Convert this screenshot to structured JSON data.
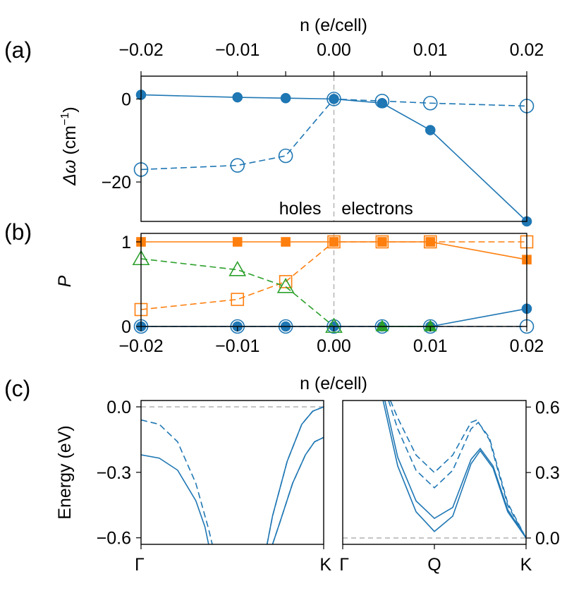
{
  "chart_data": [
    {
      "type": "line",
      "panel_label": "(a)",
      "xlabel": "n (e/cell)",
      "ylabel_main": "Δω",
      "ylabel_unit_pre": " (cm",
      "ylabel_sup": "−1",
      "ylabel_unit_post": ")",
      "xlim": [
        -0.02,
        0.02
      ],
      "ylim": [
        -29.5,
        5.5
      ],
      "xticks": [
        -0.02,
        -0.01,
        -0.005,
        0.0,
        0.005,
        0.01,
        0.02
      ],
      "xtick_labels": [
        "−0.02",
        "−0.01",
        "0.00",
        "0.01",
        "0.02"
      ],
      "xtick_label_values": [
        -0.02,
        -0.01,
        0.0,
        0.01,
        0.02
      ],
      "yticks": [
        0,
        -20
      ],
      "ytick_labels": [
        "0",
        "−20"
      ],
      "annotations": [
        {
          "text": "holes",
          "x": -0.0035,
          "y": -27
        },
        {
          "text": "electrons",
          "x": 0.0045,
          "y": -27
        }
      ],
      "series": [
        {
          "name": "filled",
          "color": "#1f77b4",
          "marker": "circle",
          "filled": true,
          "linestyle": "solid",
          "x": [
            -0.02,
            -0.01,
            -0.005,
            0.0,
            0.005,
            0.01,
            0.02
          ],
          "values": [
            1.0,
            0.4,
            0.2,
            0.0,
            -1.0,
            -7.5,
            -29.5
          ]
        },
        {
          "name": "open",
          "color": "#1f77b4",
          "marker": "circle",
          "filled": false,
          "linestyle": "dashed",
          "x": [
            -0.02,
            -0.01,
            -0.005,
            0.0,
            0.005,
            0.01,
            0.02
          ],
          "values": [
            -17.0,
            -16.0,
            -13.7,
            0.0,
            -0.5,
            -1.0,
            -1.7
          ]
        }
      ]
    },
    {
      "type": "line",
      "panel_label": "(b)",
      "xlabel": "n (e/cell)",
      "ylabel": "P",
      "xlim": [
        -0.02,
        0.02
      ],
      "ylim": [
        0,
        1.1
      ],
      "xticks": [
        -0.02,
        -0.01,
        0.0,
        0.01,
        0.02
      ],
      "xtick_labels": [
        "−0.02",
        "−0.01",
        "0.00",
        "0.01",
        "0.02"
      ],
      "yticks": [
        0,
        1
      ],
      "ytick_labels": [
        "0",
        "1"
      ],
      "series": [
        {
          "name": "blue filled",
          "color": "#1f77b4",
          "marker": "circle",
          "filled": true,
          "linestyle": "solid",
          "x": [
            -0.02,
            -0.01,
            -0.005,
            0.0,
            0.005,
            0.01,
            0.02
          ],
          "values": [
            0,
            0,
            0,
            0,
            0,
            0,
            0.21
          ]
        },
        {
          "name": "blue open",
          "color": "#1f77b4",
          "marker": "circle",
          "filled": false,
          "linestyle": "dashed",
          "x": [
            -0.02,
            -0.01,
            -0.005,
            0.0,
            0.005,
            0.01,
            0.02
          ],
          "values": [
            0,
            0,
            0,
            0,
            0,
            0,
            0
          ]
        },
        {
          "name": "orange filled",
          "color": "#ff7f0e",
          "marker": "square",
          "filled": true,
          "linestyle": "solid",
          "x": [
            -0.02,
            -0.01,
            -0.005,
            0.0,
            0.005,
            0.01,
            0.02
          ],
          "values": [
            1,
            1,
            1,
            1,
            1,
            1,
            0.79
          ]
        },
        {
          "name": "orange open",
          "color": "#ff7f0e",
          "marker": "square",
          "filled": false,
          "linestyle": "dashed",
          "x": [
            -0.02,
            -0.01,
            -0.005,
            0.0,
            0.005,
            0.01,
            0.02
          ],
          "values": [
            0.2,
            0.32,
            0.53,
            1,
            1,
            1,
            1
          ]
        },
        {
          "name": "green filled",
          "color": "#2ca02c",
          "marker": "triangle",
          "filled": true,
          "linestyle": "solid",
          "x": [
            0.005,
            0.01
          ],
          "values": [
            0,
            0
          ]
        },
        {
          "name": "green open",
          "color": "#2ca02c",
          "marker": "triangle",
          "filled": false,
          "linestyle": "dashed",
          "x": [
            -0.02,
            -0.01,
            -0.005,
            0.0
          ],
          "values": [
            0.8,
            0.67,
            0.47,
            0
          ]
        }
      ]
    },
    {
      "type": "line",
      "panel_label": "(c)",
      "ylabel": "Energy (eV)",
      "ylim": [
        -0.63,
        0.0
      ],
      "yticks": [
        0.0,
        -0.3,
        -0.6
      ],
      "ytick_labels": [
        "0.0",
        "−0.3",
        "−0.6"
      ],
      "xtick_labels": [
        "Γ",
        "K"
      ],
      "reference_line": 0.0,
      "series": [
        {
          "name": "valence solid 1",
          "color": "#1f77b4",
          "linestyle": "solid",
          "x": [
            0,
            0.1,
            0.2,
            0.3,
            0.35,
            0.37
          ],
          "values": [
            -0.22,
            -0.235,
            -0.29,
            -0.43,
            -0.55,
            -0.63
          ]
        },
        {
          "name": "valence dashed 1",
          "color": "#1f77b4",
          "linestyle": "dashed",
          "x": [
            0,
            0.1,
            0.2,
            0.3,
            0.37,
            0.39
          ],
          "values": [
            -0.06,
            -0.08,
            -0.16,
            -0.35,
            -0.56,
            -0.63
          ]
        },
        {
          "name": "valence solid 2",
          "color": "#1f77b4",
          "linestyle": "solid",
          "x": [
            0.69,
            0.72,
            0.8,
            0.88,
            0.94,
            1.0
          ],
          "values": [
            -0.63,
            -0.5,
            -0.25,
            -0.08,
            -0.02,
            0.0
          ]
        },
        {
          "name": "valence dashed 2",
          "color": "#1f77b4",
          "linestyle": "dashed",
          "x": [
            0.69,
            0.72,
            0.8,
            0.88,
            0.94,
            1.0
          ],
          "values": [
            -0.63,
            -0.5,
            -0.25,
            -0.08,
            -0.02,
            0.0
          ]
        },
        {
          "name": "valence solid 3",
          "color": "#1f77b4",
          "linestyle": "solid",
          "x": [
            0.72,
            0.76,
            0.83,
            0.9,
            0.95,
            1.0
          ],
          "values": [
            -0.63,
            -0.53,
            -0.35,
            -0.22,
            -0.16,
            -0.14
          ]
        },
        {
          "name": "valence dashed 3",
          "color": "#1f77b4",
          "linestyle": "dashed",
          "x": [
            0.72,
            0.76,
            0.83,
            0.9,
            0.95,
            1.0
          ],
          "values": [
            -0.63,
            -0.53,
            -0.35,
            -0.22,
            -0.16,
            -0.14
          ]
        }
      ]
    },
    {
      "type": "line",
      "panel_label": "",
      "ylim": [
        0.0,
        0.63
      ],
      "yticks": [
        0.6,
        0.3,
        0.0
      ],
      "ytick_labels": [
        "0.6",
        "0.3",
        "0.0"
      ],
      "xtick_labels": [
        "Γ",
        "Q",
        "K"
      ],
      "xtick_positions": [
        0,
        0.5,
        1
      ],
      "reference_line": 0.0,
      "series": [
        {
          "name": "conduction solid lower",
          "color": "#1f77b4",
          "linestyle": "solid",
          "x": [
            0.22,
            0.3,
            0.4,
            0.5,
            0.6,
            0.7,
            0.75,
            0.82,
            0.9,
            1.0
          ],
          "values": [
            0.63,
            0.33,
            0.12,
            0.03,
            0.1,
            0.34,
            0.4,
            0.32,
            0.12,
            0.0
          ]
        },
        {
          "name": "conduction solid upper",
          "color": "#1f77b4",
          "linestyle": "solid",
          "x": [
            0.23,
            0.3,
            0.4,
            0.5,
            0.6,
            0.7,
            0.75,
            0.82,
            0.9,
            1.0
          ],
          "values": [
            0.63,
            0.37,
            0.17,
            0.09,
            0.14,
            0.36,
            0.41,
            0.33,
            0.13,
            0.0
          ]
        },
        {
          "name": "conduction dashed lower",
          "color": "#1f77b4",
          "linestyle": "dashed",
          "x": [
            0.25,
            0.3,
            0.4,
            0.5,
            0.6,
            0.7,
            0.74,
            0.8,
            0.9,
            1.0
          ],
          "values": [
            0.63,
            0.5,
            0.31,
            0.23,
            0.31,
            0.5,
            0.53,
            0.45,
            0.15,
            0.0
          ]
        },
        {
          "name": "conduction dashed upper",
          "color": "#1f77b4",
          "linestyle": "dashed",
          "x": [
            0.26,
            0.3,
            0.4,
            0.5,
            0.6,
            0.7,
            0.73,
            0.8,
            0.9,
            1.0
          ],
          "values": [
            0.63,
            0.55,
            0.38,
            0.3,
            0.38,
            0.53,
            0.54,
            0.46,
            0.16,
            0.0
          ]
        }
      ]
    }
  ]
}
